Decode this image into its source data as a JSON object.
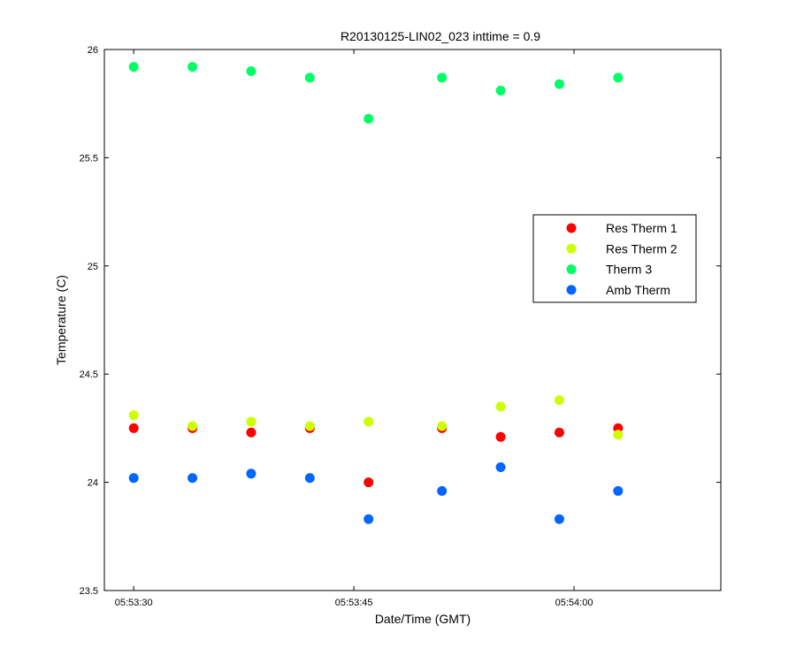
{
  "chart_data": {
    "type": "scatter",
    "title": "R20130125-LIN02_023 inttime = 0.9",
    "xlabel": "Date/Time (GMT)",
    "ylabel": "Temperature (C)",
    "xlim": [
      "05:53:28",
      "05:54:10"
    ],
    "ylim": [
      23.5,
      26
    ],
    "x_ticks": [
      "05:53:30",
      "05:53:45",
      "05:54:00"
    ],
    "y_ticks": [
      "23.5",
      "24",
      "24.5",
      "25",
      "25.5",
      "26"
    ],
    "x": [
      "05:53:30",
      "05:53:34",
      "05:53:38",
      "05:53:42",
      "05:53:46",
      "05:53:51",
      "05:53:55",
      "05:53:59",
      "05:54:03"
    ],
    "legend_position": "right",
    "grid": false,
    "series": [
      {
        "name": "Res Therm 1",
        "color": "#ff0000",
        "values": [
          24.25,
          24.25,
          24.23,
          24.25,
          24.0,
          24.25,
          24.21,
          24.23,
          24.25
        ]
      },
      {
        "name": "Res Therm 2",
        "color": "#ccff00",
        "values": [
          24.31,
          24.26,
          24.28,
          24.26,
          24.28,
          24.26,
          24.35,
          24.38,
          24.22
        ]
      },
      {
        "name": "Therm 3",
        "color": "#00ff66",
        "values": [
          25.92,
          25.92,
          25.9,
          25.87,
          25.68,
          25.87,
          25.81,
          25.84,
          25.87
        ]
      },
      {
        "name": "Amb Therm",
        "color": "#0066ff",
        "values": [
          24.02,
          24.02,
          24.04,
          24.02,
          23.83,
          23.96,
          24.07,
          23.83,
          23.96
        ]
      }
    ]
  }
}
